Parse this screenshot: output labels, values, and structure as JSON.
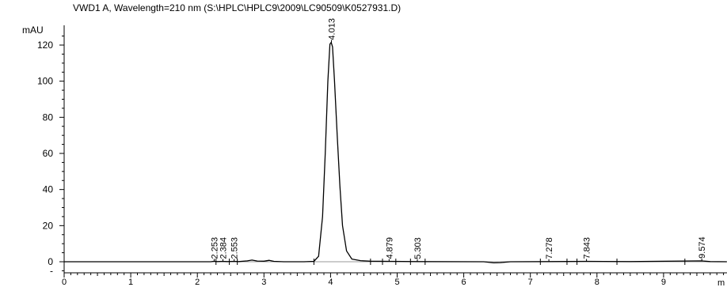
{
  "chart_data": {
    "type": "line",
    "title": "VWD1 A, Wavelength=210 nm (S:\\HPLC\\HPLC9\\2009\\LC90509\\K0527931.D)",
    "ylabel": "mAU",
    "xlabel": "m",
    "xlim": [
      0,
      9.95
    ],
    "ylim": [
      -5,
      130
    ],
    "x_ticks": [
      0,
      1,
      2,
      3,
      4,
      5,
      6,
      7,
      8,
      9
    ],
    "y_ticks": [
      0,
      20,
      40,
      60,
      80,
      100,
      120
    ],
    "y_tick_labels": [
      "0",
      "20",
      "40",
      "60",
      "80",
      "100",
      "120"
    ],
    "x_tick_labels": [
      "0",
      "1",
      "2",
      "3",
      "4",
      "5",
      "6",
      "7",
      "8",
      "9"
    ],
    "grid": false,
    "series": [
      {
        "color": "#000000",
        "x": [
          0,
          2.2,
          2.25,
          2.3,
          2.38,
          2.45,
          2.55,
          2.62,
          2.75,
          2.82,
          2.9,
          3.0,
          3.08,
          3.15,
          3.3,
          3.6,
          3.75,
          3.82,
          3.88,
          3.92,
          3.96,
          3.99,
          4.01,
          4.03,
          4.06,
          4.1,
          4.14,
          4.18,
          4.24,
          4.32,
          4.45,
          4.6,
          4.88,
          5.3,
          6.3,
          6.45,
          6.55,
          6.7,
          7.28,
          7.84,
          8.5,
          9.57,
          9.7,
          9.95
        ],
        "y": [
          0,
          0,
          0.25,
          0.1,
          0.2,
          0.1,
          0.2,
          0.1,
          0.5,
          0.9,
          0.4,
          0.3,
          0.8,
          0.2,
          0,
          0,
          0.2,
          3,
          25,
          60,
          100,
          120.5,
          121.5,
          119,
          100,
          70,
          42,
          20,
          6,
          1.5,
          0.6,
          0.3,
          0.2,
          0.1,
          0,
          -0.6,
          -0.5,
          0,
          0.1,
          0.2,
          0.1,
          0.5,
          0.1,
          0
        ]
      }
    ],
    "peaks": [
      {
        "rt": 2.253,
        "label": "2.253",
        "height": 0.25
      },
      {
        "rt": 2.384,
        "label": "2.384",
        "height": 0.2
      },
      {
        "rt": 2.553,
        "label": "2.553",
        "height": 0.2
      },
      {
        "rt": 4.013,
        "label": "4.013",
        "height": 121.5
      },
      {
        "rt": 4.879,
        "label": "4.879",
        "height": 0.2
      },
      {
        "rt": 5.303,
        "label": "5.303",
        "height": 0.1
      },
      {
        "rt": 7.278,
        "label": "7.278",
        "height": 0.1
      },
      {
        "rt": 7.843,
        "label": "7.843",
        "height": 0.2
      },
      {
        "rt": 9.574,
        "label": "9.574",
        "height": 0.5
      }
    ],
    "integration_markers": [
      2.28,
      2.48,
      2.6,
      3.75,
      4.6,
      4.78,
      4.98,
      5.2,
      5.42,
      7.15,
      7.55,
      7.7,
      8.3,
      9.32
    ]
  }
}
